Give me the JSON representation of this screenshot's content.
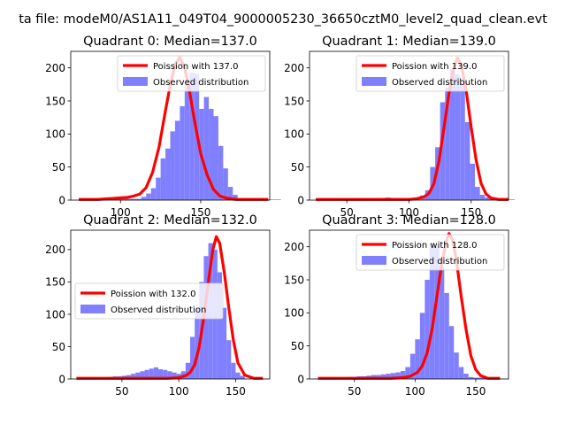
{
  "figure": {
    "suptitle": "ta file: modeM0/AS1A11_049T04_9000005230_36650cztM0_level2_quad_clean.evt"
  },
  "colors": {
    "poisson": "#ff0000",
    "observed": "#8080ff",
    "axis": "#000000",
    "background": "#ffffff"
  },
  "chart_data": [
    {
      "type": "bar",
      "title": "Quadrant 0: Median=137.0",
      "legend_placement": "upper right",
      "legend": [
        "Poission with 137.0",
        "Observed distribution"
      ],
      "xlim": [
        69,
        193
      ],
      "ylim": [
        0,
        225
      ],
      "xticks": [
        100,
        150
      ],
      "yticks": [
        0,
        50,
        100,
        150,
        200
      ],
      "histogram": {
        "bin_start": 74,
        "bin_width": 3,
        "counts": [
          1,
          1,
          1,
          1,
          1,
          2,
          2,
          2,
          3,
          3,
          2,
          2,
          2,
          5,
          10,
          18,
          34,
          63,
          78,
          104,
          120,
          142,
          177,
          193,
          191,
          138,
          156,
          138,
          127,
          82,
          48,
          20,
          8,
          3,
          2,
          1,
          1,
          1,
          1,
          1,
          1,
          1
        ]
      },
      "poisson": {
        "lambda": 137.0,
        "x": [
          74,
          80,
          86,
          92,
          98,
          104,
          108,
          112,
          116,
          120,
          124,
          128,
          131,
          134,
          137,
          140,
          143,
          146,
          150,
          154,
          158,
          162,
          166,
          172,
          180,
          192
        ],
        "y": [
          1,
          1,
          1,
          2,
          3,
          4,
          6,
          9,
          19,
          42,
          80,
          135,
          174,
          205,
          216,
          200,
          165,
          122,
          70,
          38,
          16,
          6,
          3,
          1,
          1,
          1
        ]
      }
    },
    {
      "type": "bar",
      "title": "Quadrant 1: Median=139.0",
      "legend_placement": "upper right",
      "legend": [
        "Poission with 139.0",
        "Observed distribution"
      ],
      "xlim": [
        20,
        180
      ],
      "ylim": [
        0,
        225
      ],
      "xticks": [
        50,
        100,
        150
      ],
      "yticks": [
        0,
        50,
        100,
        150,
        200
      ],
      "histogram": {
        "bin_start": 25,
        "bin_width": 4,
        "counts": [
          1,
          1,
          1,
          1,
          2,
          2,
          2,
          2,
          2,
          2,
          2,
          3,
          3,
          3,
          4,
          3,
          3,
          2,
          2,
          3,
          4,
          7,
          15,
          50,
          80,
          148,
          170,
          200,
          190,
          175,
          118,
          55,
          20,
          8,
          4,
          2,
          1,
          1,
          1,
          1
        ]
      },
      "poisson": {
        "lambda": 139.0,
        "x": [
          25,
          50,
          80,
          100,
          106,
          112,
          116,
          120,
          124,
          128,
          132,
          136,
          139,
          142,
          146,
          150,
          154,
          158,
          162,
          166,
          172,
          180
        ],
        "y": [
          1,
          1,
          1,
          1,
          2,
          5,
          10,
          25,
          58,
          108,
          160,
          200,
          215,
          205,
          165,
          110,
          60,
          25,
          9,
          3,
          1,
          1
        ]
      }
    },
    {
      "type": "bar",
      "title": "Quadrant 2: Median=132.0",
      "legend_placement": "center left",
      "legend": [
        "Poission with 132.0",
        "Observed distribution"
      ],
      "xlim": [
        5,
        180
      ],
      "ylim": [
        0,
        230
      ],
      "xticks": [
        50,
        100,
        150
      ],
      "yticks": [
        0,
        50,
        100,
        150,
        200
      ],
      "histogram": {
        "bin_start": 10,
        "bin_width": 4,
        "counts": [
          2,
          2,
          2,
          2,
          2,
          2,
          2,
          3,
          4,
          4,
          5,
          6,
          8,
          10,
          12,
          14,
          16,
          18,
          15,
          14,
          12,
          10,
          8,
          12,
          25,
          65,
          110,
          150,
          190,
          210,
          200,
          165,
          110,
          60,
          25,
          10,
          5
        ]
      },
      "poisson": {
        "lambda": 132.0,
        "x": [
          10,
          60,
          90,
          100,
          106,
          110,
          114,
          118,
          122,
          126,
          130,
          133,
          136,
          140,
          144,
          148,
          152,
          158,
          166,
          174
        ],
        "y": [
          1,
          1,
          1,
          2,
          5,
          10,
          22,
          50,
          95,
          150,
          200,
          220,
          210,
          165,
          110,
          60,
          25,
          6,
          1,
          1
        ]
      }
    },
    {
      "type": "bar",
      "title": "Quadrant 3: Median=128.0",
      "legend_placement": "upper right",
      "legend": [
        "Poission with 128.0",
        "Observed distribution"
      ],
      "xlim": [
        13,
        177
      ],
      "ylim": [
        0,
        225
      ],
      "xticks": [
        50,
        100,
        150
      ],
      "yticks": [
        0,
        50,
        100,
        150,
        200
      ],
      "histogram": {
        "bin_start": 20,
        "bin_width": 4,
        "counts": [
          2,
          2,
          2,
          2,
          2,
          2,
          3,
          3,
          4,
          4,
          5,
          6,
          6,
          7,
          8,
          9,
          10,
          12,
          18,
          38,
          60,
          100,
          150,
          205,
          200,
          170,
          130,
          80,
          40,
          18,
          8,
          3,
          2,
          2,
          2,
          2,
          2
        ]
      },
      "poisson": {
        "lambda": 128.0,
        "x": [
          20,
          50,
          80,
          90,
          96,
          102,
          106,
          110,
          114,
          118,
          122,
          126,
          128,
          131,
          134,
          138,
          142,
          146,
          150,
          154,
          160,
          170
        ],
        "y": [
          1,
          1,
          1,
          2,
          4,
          10,
          20,
          40,
          75,
          125,
          175,
          210,
          220,
          210,
          180,
          125,
          75,
          35,
          14,
          5,
          1,
          1
        ]
      }
    }
  ]
}
